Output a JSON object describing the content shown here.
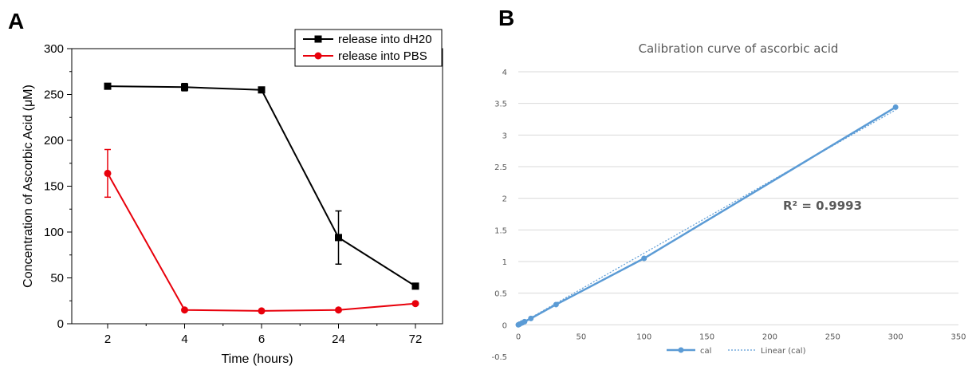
{
  "colors": {
    "dh20": "#000000",
    "pbs": "#e8000b",
    "cal": "#5b9bd5",
    "grid": "#d9d9d9",
    "text_b": "#595959"
  },
  "chart_data": [
    {
      "panel": "A",
      "type": "line",
      "categories": [
        "2",
        "4",
        "6",
        "24",
        "72"
      ],
      "xlabel": "Time (hours)",
      "ylabel": "Concentration of Ascorbic Acid (μM)",
      "ylim": [
        0,
        300
      ],
      "yticks": [
        "0",
        "50",
        "100",
        "150",
        "200",
        "250",
        "300"
      ],
      "legend_position": "top-right",
      "series": [
        {
          "name": "release into dH20",
          "color": "#000000",
          "marker": "square",
          "values": [
            259,
            258,
            255,
            94,
            41
          ],
          "errors": [
            2,
            4,
            2,
            29,
            2
          ]
        },
        {
          "name": "release into PBS",
          "color": "#e8000b",
          "marker": "circle",
          "values": [
            164,
            15,
            14,
            15,
            22
          ],
          "errors": [
            26,
            1,
            1,
            1,
            1
          ]
        }
      ]
    },
    {
      "panel": "B",
      "type": "scatter",
      "title": "Calibration curve of ascorbic acid",
      "xlim": [
        0,
        350
      ],
      "ylim": [
        -0.5,
        4
      ],
      "xticks": [
        "0",
        "50",
        "100",
        "150",
        "200",
        "250",
        "300",
        "350"
      ],
      "yticks": [
        "-0.5",
        "0",
        "0.5",
        "1",
        "1.5",
        "2",
        "2.5",
        "3",
        "3.5",
        "4"
      ],
      "grid": true,
      "legend_position": "bottom",
      "annotation": "R² = 0.9993",
      "series": [
        {
          "name": "cal",
          "color": "#5b9bd5",
          "x": [
            0,
            1,
            3,
            5,
            10,
            30,
            100,
            300
          ],
          "y": [
            0.0,
            0.01,
            0.03,
            0.05,
            0.1,
            0.32,
            1.05,
            3.44
          ]
        }
      ],
      "trendline": {
        "name": "Linear (cal)",
        "slope": 0.01132,
        "intercept": 0.0
      }
    }
  ]
}
